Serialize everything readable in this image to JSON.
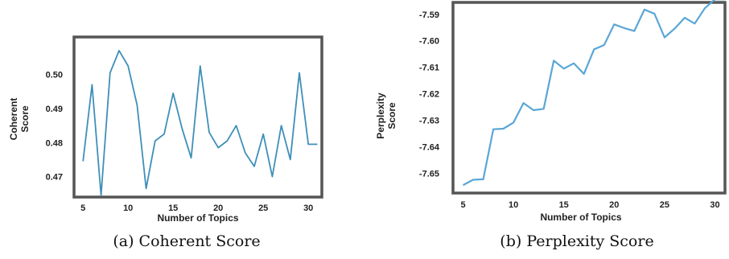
{
  "chart_data": [
    {
      "type": "line",
      "caption": "(a) Coherent Score",
      "xlabel": "Number of Topics",
      "ylabel": [
        "Coherent",
        "Score"
      ],
      "xlim": [
        4,
        31.5
      ],
      "ylim": [
        0.464,
        0.511
      ],
      "xticks": [
        5,
        10,
        15,
        20,
        25,
        30
      ],
      "yticks": [
        0.47,
        0.48,
        0.49,
        0.5
      ],
      "ytick_labels": [
        "0.47",
        "0.48",
        "0.49",
        "0.50"
      ],
      "grid": false,
      "color": "#3f8fb9",
      "x": [
        5,
        6,
        7,
        8,
        9,
        10,
        11,
        12,
        13,
        14,
        15,
        16,
        17,
        18,
        19,
        20,
        21,
        22,
        23,
        24,
        25,
        26,
        27,
        28,
        29,
        30,
        31
      ],
      "y": [
        0.4745,
        0.497,
        0.4645,
        0.5005,
        0.507,
        0.5025,
        0.491,
        0.4665,
        0.4805,
        0.4825,
        0.4945,
        0.484,
        0.4755,
        0.5025,
        0.483,
        0.4785,
        0.4805,
        0.485,
        0.477,
        0.473,
        0.4825,
        0.47,
        0.485,
        0.475,
        0.5005,
        0.4795,
        0.4795
      ]
    },
    {
      "type": "line",
      "caption": "(b) Perplexity Score",
      "xlabel": "Number of Topics",
      "ylabel": [
        "Perplexity",
        "Score"
      ],
      "xlim": [
        4,
        31
      ],
      "ylim": [
        -7.6575,
        -7.5855
      ],
      "xticks": [
        5,
        10,
        15,
        20,
        25,
        30
      ],
      "yticks": [
        -7.65,
        -7.64,
        -7.63,
        -7.62,
        -7.61,
        -7.6,
        -7.59
      ],
      "ytick_labels": [
        "-7.65",
        "-7.64",
        "-7.63",
        "-7.62",
        "-7.61",
        "-7.60",
        "-7.59"
      ],
      "grid": false,
      "color": "#5aa6d6",
      "x": [
        5,
        6,
        7,
        8,
        9,
        10,
        11,
        12,
        13,
        14,
        15,
        16,
        17,
        18,
        19,
        20,
        21,
        22,
        23,
        24,
        25,
        26,
        27,
        28,
        29,
        30,
        31
      ],
      "y": [
        -7.6545,
        -7.6525,
        -7.6523,
        -7.6334,
        -7.6332,
        -7.6309,
        -7.6235,
        -7.6262,
        -7.6257,
        -7.6075,
        -7.6105,
        -7.6085,
        -7.6125,
        -7.6032,
        -7.6016,
        -7.5938,
        -7.5952,
        -7.5963,
        -7.5882,
        -7.5898,
        -7.5987,
        -7.5954,
        -7.5913,
        -7.5935,
        -7.5877,
        -7.5843,
        -7.5843
      ]
    }
  ]
}
